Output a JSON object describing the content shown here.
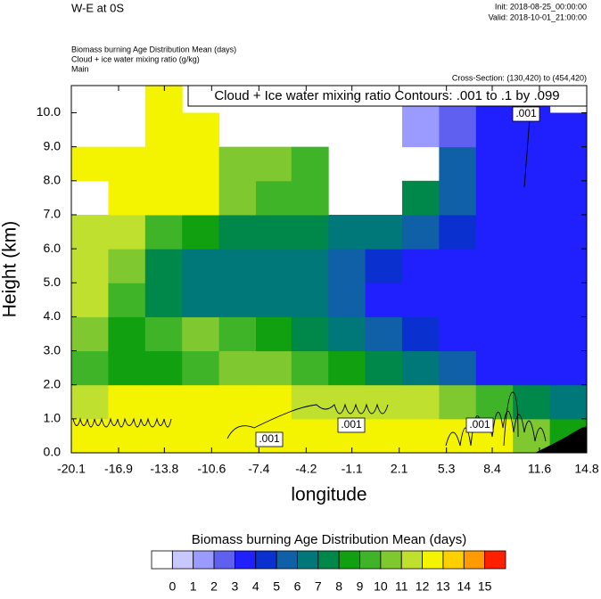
{
  "chart_data": {
    "type": "contour",
    "title": "W-E at 0S",
    "init": "Init: 2018-08-25_00:00:00",
    "valid": "Valid: 2018-10-01_21:00:00",
    "subtitles": [
      "Biomass burning Age Distribution Mean   (days)",
      "Cloud + ice water mixing ratio   (g/kg)",
      "Main"
    ],
    "cross_section": "Cross-Section: (130,420) to (454,420)",
    "contour_title": "Cloud + Ice water mixing ratio Contours: .001 to .1 by .099",
    "contour_labels": [
      ".001",
      ".001",
      ".001",
      ".001"
    ],
    "x_label": "longitude",
    "y_label": "Height (km)",
    "xlim": [
      -20.1,
      14.8
    ],
    "ylim": [
      0,
      10.8
    ],
    "xticks": [
      -20.1,
      -16.9,
      -13.8,
      -10.6,
      -7.4,
      -4.2,
      -1.1,
      2.1,
      5.3,
      8.4,
      11.6,
      14.8
    ],
    "yticks": [
      {
        "value": 0,
        "label": "0.0"
      },
      {
        "value": 1,
        "label": "1.0"
      },
      {
        "value": 2,
        "label": "2.0"
      },
      {
        "value": 3,
        "label": "3.0"
      },
      {
        "value": 4,
        "label": "4.0"
      },
      {
        "value": 5,
        "label": "5.0"
      },
      {
        "value": 6,
        "label": "6.0"
      },
      {
        "value": 7,
        "label": "7.0"
      },
      {
        "value": 8,
        "label": "8.0"
      },
      {
        "value": 9,
        "label": "9.0"
      },
      {
        "value": 10,
        "label": "10.0"
      }
    ],
    "x_edges": [
      -20.1,
      -17.6,
      -15.1,
      -12.6,
      -10.1,
      -7.6,
      -5.2,
      -2.7,
      -0.2,
      2.3,
      4.8,
      7.3,
      9.8,
      12.3,
      14.8
    ],
    "y_edges": [
      0,
      1,
      2,
      3,
      4,
      5,
      6,
      7,
      8,
      9,
      10,
      10.8
    ],
    "z": [
      [
        12,
        12,
        12,
        12,
        12,
        12,
        12,
        12,
        12,
        12,
        12,
        12,
        10,
        8
      ],
      [
        11,
        12,
        12,
        12,
        12,
        12,
        11,
        11,
        11,
        11,
        10,
        9,
        7,
        6
      ],
      [
        9,
        8,
        8,
        9,
        10,
        10,
        9,
        8,
        7,
        6,
        5,
        3,
        3,
        3
      ],
      [
        10,
        8,
        9,
        10,
        9,
        8,
        7,
        6,
        5,
        4,
        3,
        3,
        3,
        3
      ],
      [
        11,
        9,
        7,
        6,
        6,
        6,
        6,
        5,
        3,
        3,
        3,
        3,
        3,
        3
      ],
      [
        11,
        10,
        7,
        6,
        6,
        6,
        6,
        5,
        4,
        3,
        3,
        3,
        3,
        3
      ],
      [
        11,
        11,
        9,
        8,
        7,
        7,
        7,
        6,
        6,
        5,
        4,
        3,
        3,
        3
      ],
      [
        null,
        12,
        12,
        12,
        10,
        9,
        9,
        null,
        null,
        7,
        5,
        3,
        3,
        3
      ],
      [
        12,
        12,
        12,
        12,
        10,
        10,
        9,
        null,
        null,
        null,
        5,
        3,
        3,
        3
      ],
      [
        null,
        null,
        12,
        12,
        null,
        null,
        null,
        null,
        null,
        1,
        2,
        3,
        3,
        3
      ],
      [
        null,
        null,
        12,
        null,
        null,
        null,
        null,
        null,
        null,
        1,
        2,
        3,
        3,
        null
      ]
    ],
    "colorbar": {
      "title": "Biomass burning Age Distribution Mean  (days)",
      "levels": [
        0,
        1,
        2,
        3,
        4,
        5,
        6,
        7,
        8,
        9,
        10,
        11,
        12,
        13,
        14,
        15
      ],
      "colors": [
        "#ffffff",
        "#c8c8ff",
        "#9a9aff",
        "#6060f0",
        "#2020ff",
        "#0a30d0",
        "#1060a8",
        "#00787a",
        "#00884a",
        "#10a010",
        "#40b428",
        "#80c830",
        "#c0e030",
        "#f4f400",
        "#ffd000",
        "#ff9a00",
        "#ff2000"
      ]
    }
  }
}
